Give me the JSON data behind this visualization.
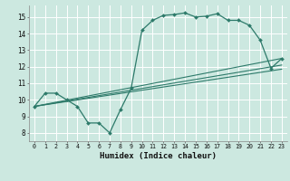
{
  "bg_color": "#cce8e0",
  "grid_color": "#ffffff",
  "line_color": "#2d7a6a",
  "marker_color": "#2d7a6a",
  "xlabel": "Humidex (Indice chaleur)",
  "xlim": [
    -0.5,
    23.5
  ],
  "ylim": [
    7.5,
    15.7
  ],
  "xticks": [
    0,
    1,
    2,
    3,
    4,
    5,
    6,
    7,
    8,
    9,
    10,
    11,
    12,
    13,
    14,
    15,
    16,
    17,
    18,
    19,
    20,
    21,
    22,
    23
  ],
  "yticks": [
    8,
    9,
    10,
    11,
    12,
    13,
    14,
    15
  ],
  "curve1_x": [
    0,
    1,
    2,
    3,
    4,
    5,
    6,
    7,
    8,
    9,
    10,
    11,
    12,
    13,
    14,
    15,
    16,
    17,
    18,
    19,
    20,
    21,
    22,
    23
  ],
  "curve1_y": [
    9.6,
    10.4,
    10.4,
    10.0,
    9.6,
    8.6,
    8.6,
    8.0,
    9.4,
    10.7,
    14.2,
    14.8,
    15.1,
    15.15,
    15.25,
    15.0,
    15.05,
    15.2,
    14.8,
    14.8,
    14.5,
    13.6,
    11.9,
    12.5
  ],
  "line1_x": [
    0,
    23
  ],
  "line1_y": [
    9.6,
    12.5
  ],
  "line2_x": [
    0,
    23
  ],
  "line2_y": [
    9.6,
    12.1
  ],
  "line3_x": [
    0,
    23
  ],
  "line3_y": [
    9.6,
    11.85
  ]
}
